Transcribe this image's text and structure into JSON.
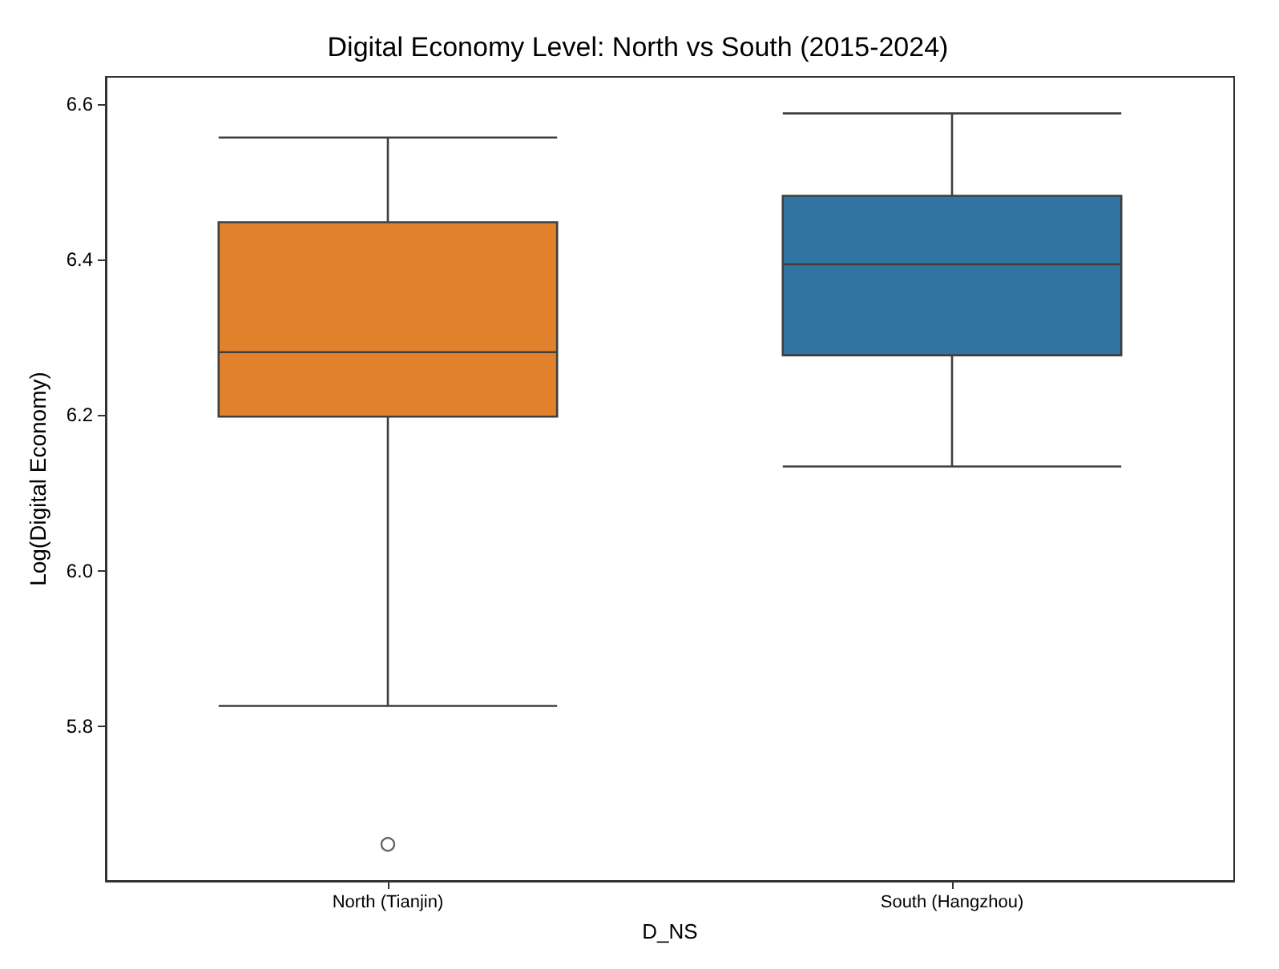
{
  "chart_data": {
    "type": "box",
    "title": "Digital Economy Level: North vs South (2015-2024)",
    "xlabel": "D_NS",
    "ylabel": "Log(Digital Economy)",
    "categories": [
      "North (Tianjin)",
      "South (Hangzhou)"
    ],
    "boxes": [
      {
        "low": 5.826,
        "q1": 6.198,
        "median": 6.281,
        "q3": 6.448,
        "high": 6.557,
        "outliers": [
          5.648
        ]
      },
      {
        "low": 6.134,
        "q1": 6.277,
        "median": 6.394,
        "q3": 6.482,
        "high": 6.588
      }
    ],
    "colors": [
      "#e1812c",
      "#3274a1"
    ],
    "ylim": [
      5.601,
      6.635
    ],
    "yticks": [
      {
        "value": 5.8,
        "label": "5.8"
      },
      {
        "value": 6.0,
        "label": "6.0"
      },
      {
        "value": 6.2,
        "label": "6.2"
      },
      {
        "value": 6.4,
        "label": "6.4"
      },
      {
        "value": 6.6,
        "label": "6.6"
      }
    ],
    "grid": false
  }
}
